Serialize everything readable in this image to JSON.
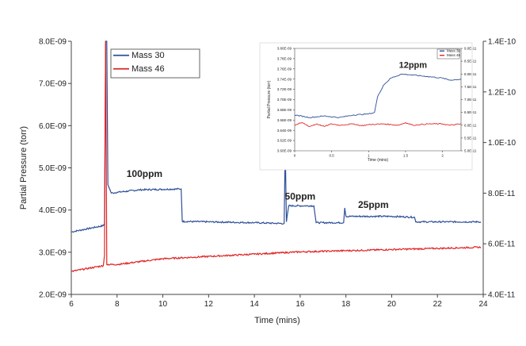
{
  "chart_data": [
    {
      "type": "line",
      "x_label": "Time (mins)",
      "y_label": "Partial Pressure (torr)",
      "x_range": [
        6,
        24
      ],
      "x_ticks": [
        "6",
        "8",
        "10",
        "12",
        "14",
        "16",
        "18",
        "20",
        "22",
        "24"
      ],
      "y_left_range": [
        2e-09,
        8e-09
      ],
      "y_left_ticks": [
        "2.0E-09",
        "3.0E-09",
        "4.0E-09",
        "5.0E-09",
        "6.0E-09",
        "7.0E-09",
        "8.0E-09"
      ],
      "y_right_range": [
        4e-11,
        1.5e-10
      ],
      "y_right_ticks": [
        "4.0E-11",
        "6.0E-11",
        "8.0E-11",
        "1.0E-10",
        "1.2E-10",
        "1.4E-10"
      ],
      "legend": {
        "position": "top-left"
      },
      "grid": false,
      "series": [
        {
          "name": "Mass 30",
          "axis": "left",
          "color": "#2e4f9a",
          "points": [
            [
              6.0,
              3.48e-09
            ],
            [
              7.4,
              3.63e-09
            ],
            [
              7.45,
              3.68e-09
            ],
            [
              7.5,
              8e-09
            ],
            [
              7.55,
              8e-09
            ],
            [
              7.6,
              4.6e-09
            ],
            [
              7.75,
              4.4e-09
            ],
            [
              8.0,
              4.42e-09
            ],
            [
              9.0,
              4.48e-09
            ],
            [
              10.8,
              4.5e-09
            ],
            [
              10.85,
              3.73e-09
            ],
            [
              12.0,
              3.72e-09
            ],
            [
              14.0,
              3.7e-09
            ],
            [
              15.3,
              3.68e-09
            ],
            [
              15.35,
              5.5e-09
            ],
            [
              15.4,
              3.72e-09
            ],
            [
              15.5,
              4.1e-09
            ],
            [
              16.6,
              4.1e-09
            ],
            [
              16.7,
              3.7e-09
            ],
            [
              17.9,
              3.7e-09
            ],
            [
              17.95,
              4.05e-09
            ],
            [
              18.0,
              3.85e-09
            ],
            [
              20.0,
              3.85e-09
            ],
            [
              21.0,
              3.83e-09
            ],
            [
              21.05,
              3.72e-09
            ],
            [
              23.9,
              3.72e-09
            ]
          ]
        },
        {
          "name": "Mass 46",
          "axis": "right",
          "color": "#e02424",
          "points": [
            [
              6.0,
              5e-11
            ],
            [
              7.4,
              5.25e-11
            ],
            [
              7.45,
              5.7e-11
            ],
            [
              7.5,
              1.5e-10
            ],
            [
              7.55,
              5.3e-11
            ],
            [
              8.0,
              5.3e-11
            ],
            [
              10.0,
              5.55e-11
            ],
            [
              12.0,
              5.65e-11
            ],
            [
              14.0,
              5.75e-11
            ],
            [
              16.0,
              5.85e-11
            ],
            [
              18.0,
              5.9e-11
            ],
            [
              20.0,
              5.95e-11
            ],
            [
              22.0,
              6e-11
            ],
            [
              23.9,
              6.05e-11
            ]
          ]
        }
      ],
      "annotations": [
        {
          "text": "100ppm",
          "x": 9.2,
          "y": 4.78e-09
        },
        {
          "text": "50ppm",
          "x": 16.0,
          "y": 4.25e-09
        },
        {
          "text": "25ppm",
          "x": 19.2,
          "y": 4.05e-09
        }
      ]
    },
    {
      "type": "line",
      "x_label": "Time (mins)",
      "y_label": "Partial Pressure (torr)",
      "x_range": [
        0,
        2.25
      ],
      "x_ticks": [
        "0",
        "0.5",
        "1",
        "1.5",
        "2"
      ],
      "y_left_range": [
        3.6e-09,
        3.8e-09
      ],
      "y_left_ticks": [
        "3.60E-09",
        "3.62E-09",
        "3.64E-09",
        "3.66E-09",
        "3.68E-09",
        "3.70E-09",
        "3.72E-09",
        "3.74E-09",
        "3.76E-09",
        "3.78E-09",
        "3.80E-09"
      ],
      "y_right_range": [
        5e-11,
        9e-11
      ],
      "y_right_ticks": [
        "5.0E-11",
        "5.5E-11",
        "6.0E-11",
        "6.5E-11",
        "7.0E-11",
        "7.5E-11",
        "8.0E-11",
        "8.5E-11",
        "9.0E-11"
      ],
      "legend": {
        "position": "top-right"
      },
      "grid": false,
      "series": [
        {
          "name": "Mass 30",
          "axis": "left",
          "color": "#2e4f9a",
          "points": [
            [
              0.0,
              3.67e-09
            ],
            [
              0.2,
              3.665e-09
            ],
            [
              0.4,
              3.668e-09
            ],
            [
              0.6,
              3.665e-09
            ],
            [
              0.8,
              3.67e-09
            ],
            [
              1.0,
              3.672e-09
            ],
            [
              1.08,
              3.675e-09
            ],
            [
              1.12,
              3.705e-09
            ],
            [
              1.2,
              3.728e-09
            ],
            [
              1.3,
              3.742e-09
            ],
            [
              1.45,
              3.75e-09
            ],
            [
              1.6,
              3.748e-09
            ],
            [
              1.8,
              3.745e-09
            ],
            [
              2.0,
              3.742e-09
            ],
            [
              2.1,
              3.738e-09
            ],
            [
              2.25,
              3.74e-09
            ]
          ]
        },
        {
          "name": "Mass 46",
          "axis": "right",
          "color": "#e02424",
          "points": [
            [
              0.0,
              6e-11
            ],
            [
              0.1,
              6.1e-11
            ],
            [
              0.2,
              5.95e-11
            ],
            [
              0.3,
              6.05e-11
            ],
            [
              0.4,
              5.95e-11
            ],
            [
              0.5,
              6.05e-11
            ],
            [
              0.6,
              6e-11
            ],
            [
              0.8,
              6.05e-11
            ],
            [
              0.9,
              5.98e-11
            ],
            [
              1.0,
              6.02e-11
            ],
            [
              1.2,
              6.05e-11
            ],
            [
              1.4,
              6e-11
            ],
            [
              1.5,
              6.1e-11
            ],
            [
              1.6,
              6e-11
            ],
            [
              1.8,
              6.05e-11
            ],
            [
              2.0,
              6.05e-11
            ],
            [
              2.1,
              6e-11
            ],
            [
              2.25,
              6.05e-11
            ]
          ]
        }
      ],
      "annotations": [
        {
          "text": "12ppm",
          "x": 1.6,
          "y": 3.762e-09
        }
      ]
    }
  ]
}
